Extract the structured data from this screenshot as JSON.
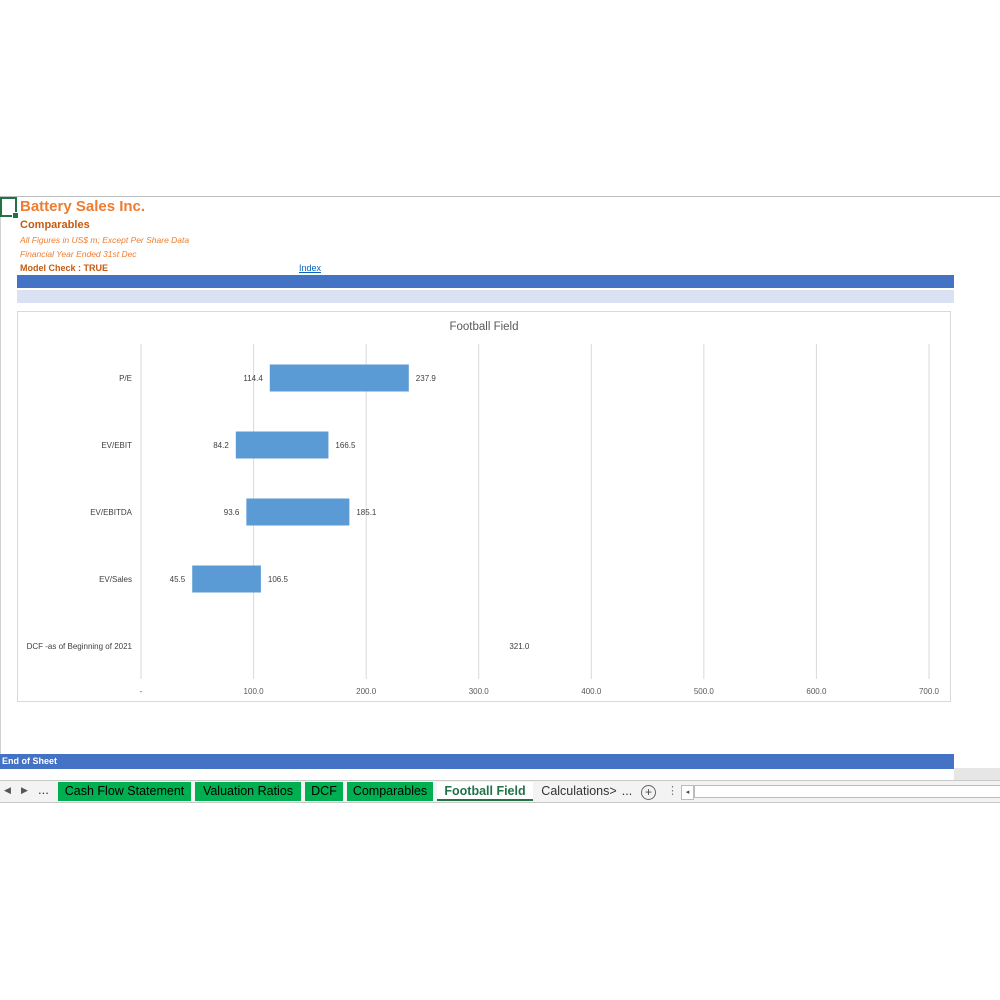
{
  "header": {
    "company": "Battery Sales Inc.",
    "subtitle": "Comparables",
    "note_figures": "All Figures in US$ m; Except Per Share Data",
    "note_year": "Financial Year Ended 31st Dec",
    "model_check": "Model Check : TRUE",
    "index_link": "Index"
  },
  "footer": {
    "end_label": "End of Sheet"
  },
  "tabs": {
    "nav_prev_icon": "triangle-left-icon",
    "nav_next_icon": "triangle-right-icon",
    "nav_dots": "...",
    "items": [
      {
        "label": "Cash Flow Statement",
        "state": "green"
      },
      {
        "label": "Valuation Ratios",
        "state": "green"
      },
      {
        "label": "DCF",
        "state": "green"
      },
      {
        "label": "Comparables",
        "state": "green"
      },
      {
        "label": "Football Field",
        "state": "active"
      },
      {
        "label": "Calculations>",
        "state": "plain"
      }
    ],
    "more": "...",
    "add_symbol": "+",
    "separator": "⋮",
    "scroll_left_icon": "◂"
  },
  "colors": {
    "accent_orange": "#ed7d31",
    "header_blue": "#4472c4",
    "band_light": "#d9e1f2",
    "bar_blue": "#5b9bd5",
    "tab_green": "#00b050",
    "excel_green": "#217346"
  },
  "chart_data": {
    "type": "bar",
    "orientation": "horizontal-floating",
    "title": "Football Field",
    "categories": [
      "P/E",
      "EV/EBIT",
      "EV/EBITDA",
      "EV/Sales",
      "DCF -as of Beginning of 2021"
    ],
    "low": [
      114.4,
      84.2,
      93.6,
      45.5,
      321.0
    ],
    "high": [
      237.9,
      166.5,
      185.1,
      106.5,
      321.0
    ],
    "low_labels": [
      "114.4",
      "84.2",
      "93.6",
      "45.5",
      ""
    ],
    "high_labels": [
      "237.9",
      "166.5",
      "185.1",
      "106.5",
      "321.0"
    ],
    "x_ticks": [
      0,
      100,
      200,
      300,
      400,
      500,
      600,
      700
    ],
    "x_tick_labels": [
      "-",
      "100.0",
      "200.0",
      "300.0",
      "400.0",
      "500.0",
      "600.0",
      "700.0"
    ],
    "xlim": [
      0,
      700
    ],
    "grid": true,
    "legend": "none"
  }
}
